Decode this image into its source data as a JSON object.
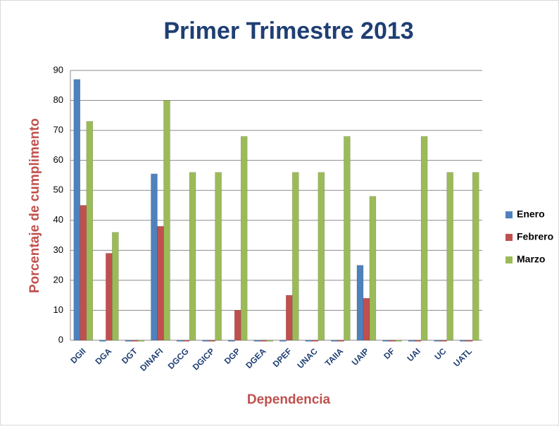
{
  "chart_data": {
    "type": "bar",
    "title": "Primer Trimestre 2013",
    "x_label": "Dependencia",
    "y_label": "Porcentaje de cumplimento",
    "categories": [
      "DGII",
      "DGA",
      "DGT",
      "DINAFI",
      "DGCG",
      "DGICP",
      "DGP",
      "DGEA",
      "DPEF",
      "UNAC",
      "TAIIA",
      "UAIP",
      "DF",
      "UAI",
      "UC",
      "UATL"
    ],
    "series": [
      {
        "name": "Enero",
        "color": "#4f81bd",
        "values": [
          87,
          0,
          0,
          55.5,
          0,
          0,
          0,
          0,
          0,
          0,
          0,
          25,
          0,
          0,
          0,
          0
        ]
      },
      {
        "name": "Febrero",
        "color": "#c0504d",
        "values": [
          45,
          29,
          0,
          38,
          0,
          0,
          10,
          0,
          15,
          0,
          0,
          14,
          0,
          0,
          0,
          0
        ]
      },
      {
        "name": "Marzo",
        "color": "#9bbb59",
        "values": [
          73,
          36,
          0,
          80,
          56,
          56,
          68,
          0,
          56,
          56,
          68,
          48,
          0,
          68,
          56,
          56
        ]
      }
    ],
    "ylim": [
      0,
      90
    ],
    "yticks": [
      0,
      10,
      20,
      30,
      40,
      50,
      60,
      70,
      80,
      90
    ],
    "grid": true,
    "legend": "right"
  }
}
